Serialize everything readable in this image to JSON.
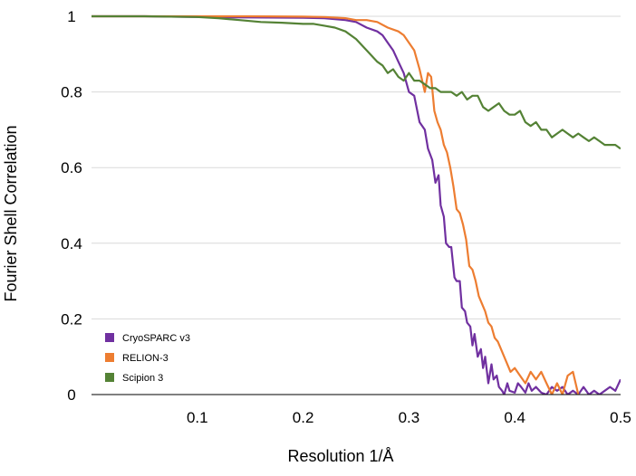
{
  "chart_data": {
    "type": "line",
    "title": "",
    "xlabel": "Resolution 1/Å",
    "ylabel": "Fourier Shell Correlation",
    "xlim": [
      0,
      0.5
    ],
    "ylim": [
      0,
      1
    ],
    "x_ticks": [
      0.1,
      0.2,
      0.3,
      0.4,
      0.5
    ],
    "x_tick_labels": [
      "0.1",
      "0.2",
      "0.3",
      "0.4",
      "0.5"
    ],
    "y_ticks": [
      0,
      0.2,
      0.4,
      0.6,
      0.8,
      1
    ],
    "y_tick_labels": [
      "0",
      "0.2",
      "0.4",
      "0.6",
      "0.8",
      "1"
    ],
    "grid": "horizontal",
    "legend_position": "bottom-left",
    "series": [
      {
        "name": "CryoSPARC v3",
        "color": "#7030a0",
        "x": [
          0,
          0.05,
          0.1,
          0.15,
          0.2,
          0.22,
          0.24,
          0.25,
          0.26,
          0.27,
          0.275,
          0.28,
          0.285,
          0.29,
          0.295,
          0.3,
          0.305,
          0.31,
          0.315,
          0.318,
          0.322,
          0.325,
          0.328,
          0.33,
          0.333,
          0.335,
          0.338,
          0.34,
          0.343,
          0.345,
          0.348,
          0.35,
          0.353,
          0.355,
          0.358,
          0.36,
          0.362,
          0.365,
          0.368,
          0.37,
          0.372,
          0.375,
          0.378,
          0.38,
          0.383,
          0.385,
          0.388,
          0.39,
          0.393,
          0.395,
          0.4,
          0.403,
          0.406,
          0.41,
          0.413,
          0.416,
          0.42,
          0.425,
          0.43,
          0.435,
          0.44,
          0.445,
          0.45,
          0.455,
          0.46,
          0.465,
          0.47,
          0.475,
          0.48,
          0.485,
          0.49,
          0.495,
          0.5
        ],
        "values": [
          1,
          1,
          0.998,
          0.997,
          0.996,
          0.995,
          0.99,
          0.985,
          0.97,
          0.96,
          0.95,
          0.93,
          0.91,
          0.88,
          0.85,
          0.8,
          0.79,
          0.72,
          0.7,
          0.65,
          0.62,
          0.56,
          0.58,
          0.5,
          0.47,
          0.4,
          0.39,
          0.39,
          0.31,
          0.3,
          0.3,
          0.23,
          0.22,
          0.19,
          0.18,
          0.13,
          0.16,
          0.1,
          0.12,
          0.07,
          0.1,
          0.03,
          0.08,
          0.04,
          0.05,
          0.02,
          0.01,
          0,
          0.03,
          0.01,
          0.005,
          0.03,
          0.02,
          0.005,
          0.03,
          0.01,
          0.02,
          0.005,
          0,
          0.02,
          0.01,
          0.02,
          0,
          0.01,
          0,
          0.02,
          0,
          0.01,
          0,
          0.01,
          0.02,
          0.01,
          0.04
        ]
      },
      {
        "name": "RELION-3",
        "color": "#ed7d31",
        "x": [
          0,
          0.05,
          0.1,
          0.15,
          0.2,
          0.22,
          0.24,
          0.25,
          0.26,
          0.27,
          0.28,
          0.29,
          0.295,
          0.3,
          0.305,
          0.31,
          0.315,
          0.318,
          0.321,
          0.324,
          0.327,
          0.33,
          0.333,
          0.336,
          0.339,
          0.342,
          0.345,
          0.348,
          0.351,
          0.354,
          0.357,
          0.36,
          0.363,
          0.366,
          0.369,
          0.372,
          0.375,
          0.378,
          0.381,
          0.384,
          0.387,
          0.39,
          0.393,
          0.396,
          0.4,
          0.405,
          0.41,
          0.415,
          0.42,
          0.425,
          0.43,
          0.435,
          0.44,
          0.445,
          0.45,
          0.455,
          0.46
        ],
        "values": [
          1,
          1,
          1,
          1,
          0.999,
          0.998,
          0.995,
          0.99,
          0.99,
          0.985,
          0.97,
          0.96,
          0.95,
          0.93,
          0.91,
          0.86,
          0.8,
          0.85,
          0.84,
          0.75,
          0.72,
          0.7,
          0.66,
          0.64,
          0.6,
          0.55,
          0.49,
          0.48,
          0.45,
          0.41,
          0.34,
          0.33,
          0.3,
          0.26,
          0.24,
          0.22,
          0.19,
          0.18,
          0.15,
          0.14,
          0.12,
          0.1,
          0.08,
          0.06,
          0.07,
          0.05,
          0.03,
          0.06,
          0.04,
          0.06,
          0.03,
          0,
          0.03,
          0,
          0.05,
          0.06,
          0
        ]
      },
      {
        "name": "Scipion 3",
        "color": "#548235",
        "x": [
          0,
          0.05,
          0.1,
          0.12,
          0.14,
          0.16,
          0.18,
          0.2,
          0.21,
          0.22,
          0.23,
          0.24,
          0.25,
          0.26,
          0.27,
          0.275,
          0.28,
          0.285,
          0.29,
          0.295,
          0.3,
          0.305,
          0.31,
          0.315,
          0.32,
          0.325,
          0.33,
          0.335,
          0.34,
          0.345,
          0.35,
          0.355,
          0.36,
          0.365,
          0.37,
          0.375,
          0.38,
          0.385,
          0.39,
          0.395,
          0.4,
          0.405,
          0.41,
          0.415,
          0.42,
          0.425,
          0.43,
          0.435,
          0.44,
          0.445,
          0.45,
          0.455,
          0.46,
          0.465,
          0.47,
          0.475,
          0.48,
          0.485,
          0.49,
          0.495,
          0.5
        ],
        "values": [
          1,
          1,
          0.998,
          0.995,
          0.99,
          0.985,
          0.983,
          0.98,
          0.98,
          0.975,
          0.97,
          0.96,
          0.94,
          0.91,
          0.88,
          0.87,
          0.85,
          0.86,
          0.84,
          0.83,
          0.85,
          0.83,
          0.83,
          0.82,
          0.81,
          0.81,
          0.8,
          0.8,
          0.8,
          0.79,
          0.8,
          0.78,
          0.79,
          0.79,
          0.76,
          0.75,
          0.76,
          0.77,
          0.75,
          0.74,
          0.74,
          0.75,
          0.72,
          0.71,
          0.72,
          0.7,
          0.7,
          0.68,
          0.69,
          0.7,
          0.69,
          0.68,
          0.69,
          0.68,
          0.67,
          0.68,
          0.67,
          0.66,
          0.66,
          0.66,
          0.65
        ]
      }
    ]
  }
}
